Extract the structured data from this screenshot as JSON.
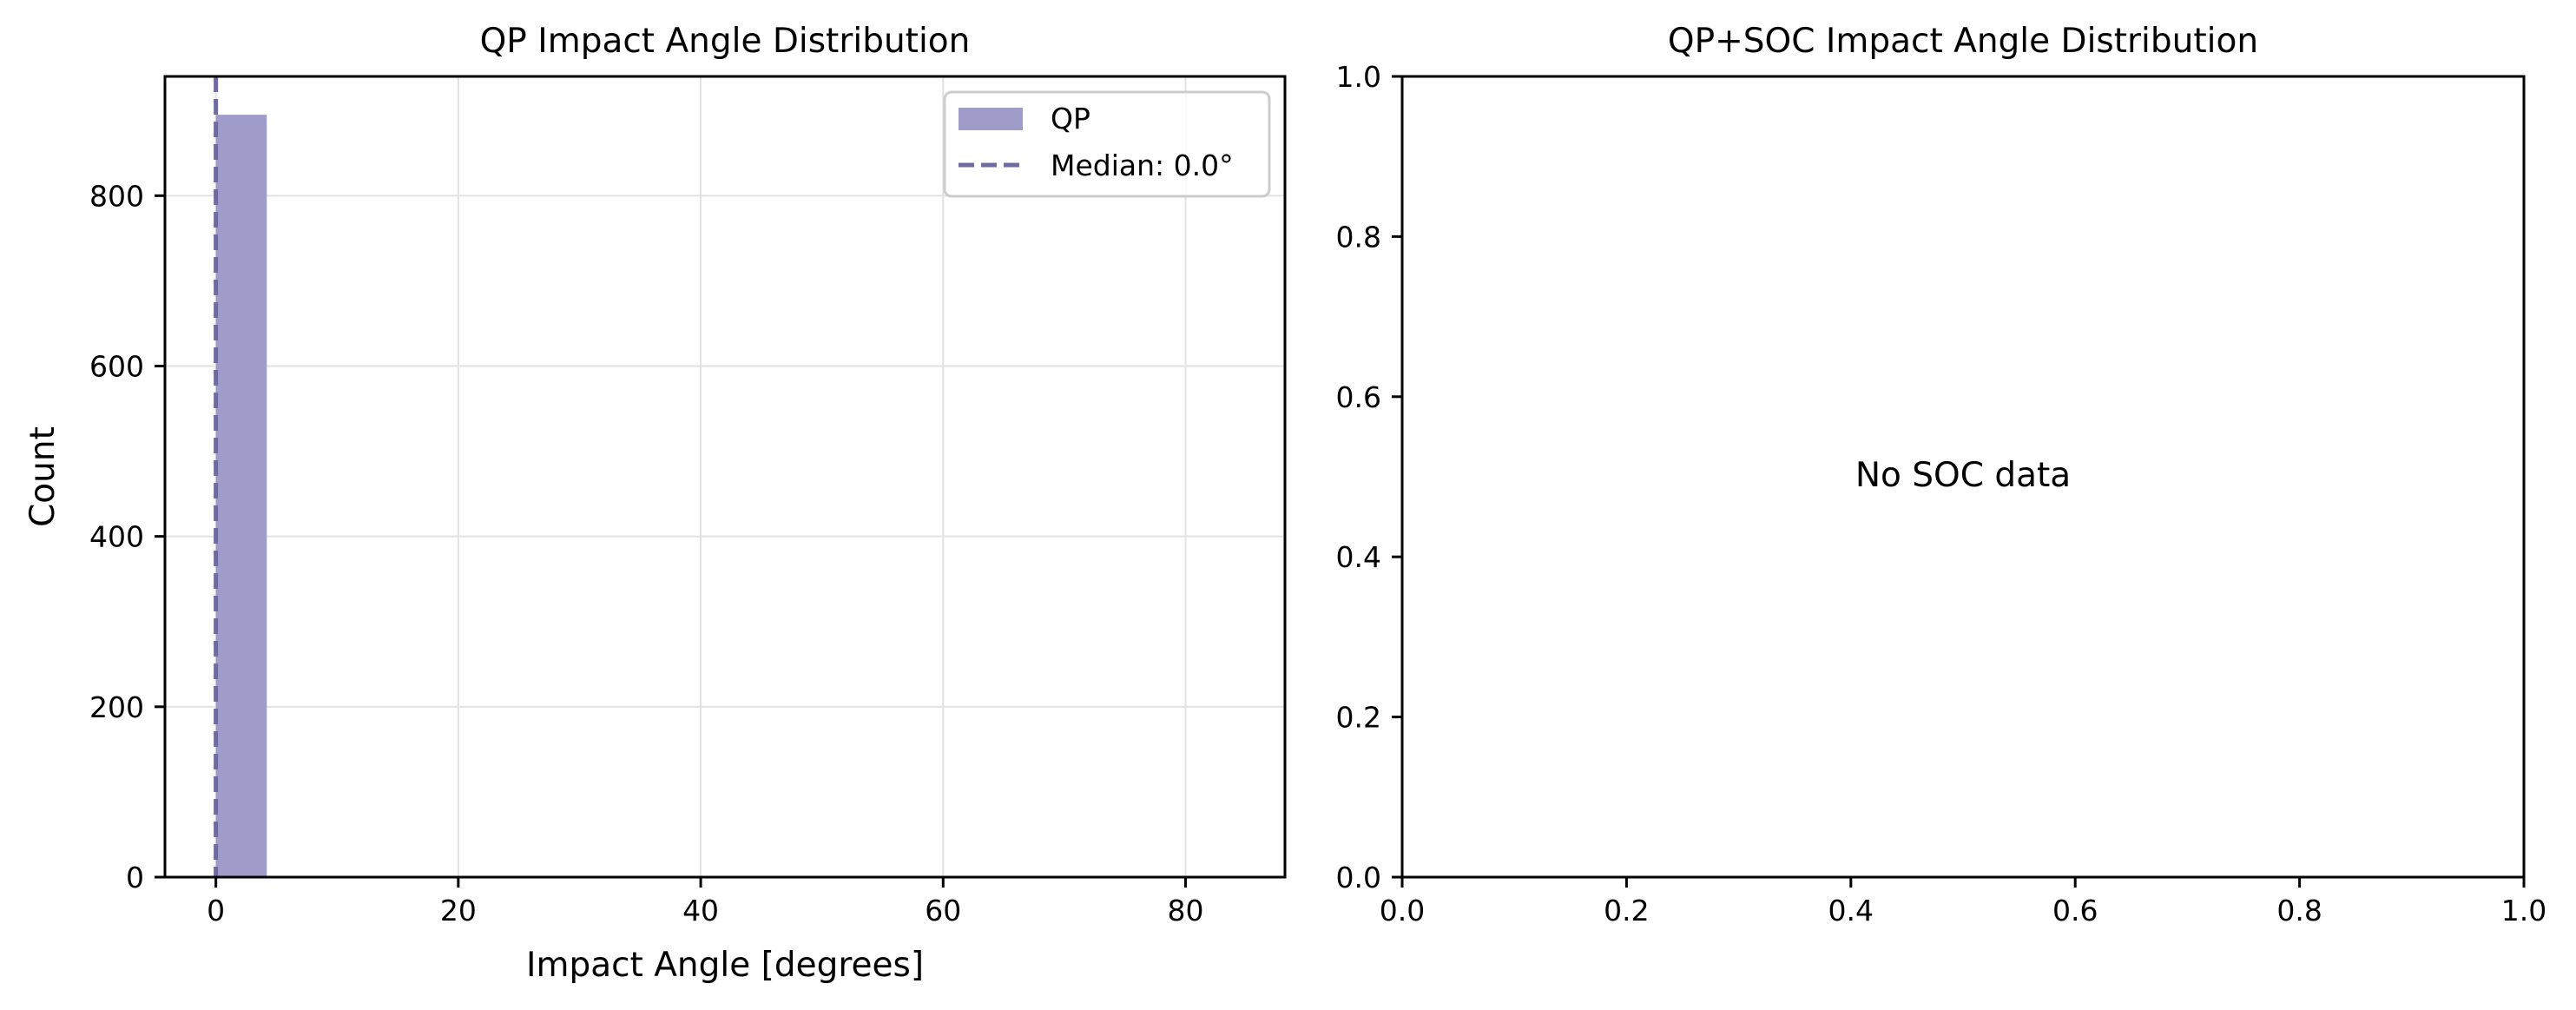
{
  "chart_data": [
    {
      "type": "bar",
      "title": "QP Impact Angle Distribution",
      "xlabel": "Impact Angle [degrees]",
      "ylabel": "Count",
      "xlim": [
        -4.2,
        88.2
      ],
      "ylim": [
        0,
        940
      ],
      "xticks": [
        0,
        20,
        40,
        60,
        80
      ],
      "yticks": [
        0,
        200,
        400,
        600,
        800
      ],
      "grid": true,
      "bins": [
        {
          "x0": 0.0,
          "x1": 4.2,
          "count": 895
        },
        {
          "x0": 4.2,
          "x1": 8.4,
          "count": 0
        },
        {
          "x0": 8.4,
          "x1": 12.6,
          "count": 0
        },
        {
          "x0": 12.6,
          "x1": 16.8,
          "count": 0
        },
        {
          "x0": 16.8,
          "x1": 21.0,
          "count": 0
        },
        {
          "x0": 21.0,
          "x1": 25.2,
          "count": 0
        },
        {
          "x0": 25.2,
          "x1": 29.4,
          "count": 0
        },
        {
          "x0": 29.4,
          "x1": 33.6,
          "count": 0
        },
        {
          "x0": 33.6,
          "x1": 37.8,
          "count": 0
        },
        {
          "x0": 37.8,
          "x1": 42.0,
          "count": 0
        },
        {
          "x0": 42.0,
          "x1": 46.2,
          "count": 0
        },
        {
          "x0": 46.2,
          "x1": 50.4,
          "count": 0
        },
        {
          "x0": 50.4,
          "x1": 54.6,
          "count": 0
        },
        {
          "x0": 54.6,
          "x1": 58.8,
          "count": 0
        },
        {
          "x0": 58.8,
          "x1": 63.0,
          "count": 0
        },
        {
          "x0": 63.0,
          "x1": 67.2,
          "count": 1
        },
        {
          "x0": 67.2,
          "x1": 71.4,
          "count": 0
        },
        {
          "x0": 71.4,
          "x1": 75.6,
          "count": 0
        },
        {
          "x0": 75.6,
          "x1": 79.8,
          "count": 1
        },
        {
          "x0": 79.8,
          "x1": 84.0,
          "count": 1
        }
      ],
      "median_line": {
        "x": 0.0,
        "label": "Median: 0.0°",
        "style": "dashed"
      },
      "legend": {
        "placement": "top-right",
        "entries": [
          {
            "label": "QP",
            "kind": "patch"
          },
          {
            "label": "Median: 0.0°",
            "kind": "dashed-line"
          }
        ]
      },
      "colors": {
        "bar": "#a09cca",
        "median": "#6f6a9f"
      }
    },
    {
      "type": "empty",
      "title": "QP+SOC Impact Angle Distribution",
      "xlim": [
        0,
        1
      ],
      "ylim": [
        0,
        1
      ],
      "xticks": [
        0.0,
        0.2,
        0.4,
        0.6,
        0.8,
        1.0
      ],
      "yticks": [
        0.0,
        0.2,
        0.4,
        0.6,
        0.8,
        1.0
      ],
      "grid": false,
      "annotation": "No SOC data"
    }
  ]
}
